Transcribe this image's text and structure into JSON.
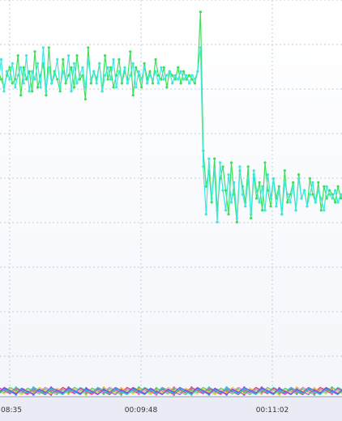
{
  "chart_data": {
    "type": "line",
    "grid": true,
    "legend": "none",
    "x_ticks": [
      "08:35",
      "00:09:48",
      "00:11:02"
    ],
    "ylim": [
      0,
      100
    ],
    "series": [
      {
        "color": "#3de058",
        "values": [
          82,
          80,
          78,
          81,
          83,
          79,
          80,
          86,
          76,
          83,
          80,
          82,
          77,
          87,
          78,
          81,
          84,
          76,
          88,
          79,
          82,
          80,
          77,
          85,
          79,
          81,
          83,
          78,
          86,
          80,
          81,
          75,
          88,
          79,
          82,
          80,
          84,
          77,
          86,
          80,
          83,
          78,
          81,
          85,
          79,
          82,
          80,
          87,
          76,
          83,
          81,
          78,
          84,
          80,
          82,
          79,
          85,
          81,
          80,
          83,
          78,
          82,
          81,
          80,
          83,
          79,
          82,
          80,
          81,
          80,
          79,
          82,
          97,
          62,
          53,
          57,
          49,
          60,
          47,
          55,
          58,
          52,
          46,
          59,
          51,
          44,
          57,
          53,
          49,
          58,
          45,
          56,
          50,
          54,
          47,
          59,
          52,
          48,
          55,
          50,
          53,
          46,
          57,
          49,
          51,
          54,
          47,
          56,
          50,
          52,
          48,
          55,
          51,
          49,
          54,
          47,
          53,
          50,
          52,
          51,
          49,
          53,
          50,
          52
        ]
      },
      {
        "color": "#3ee8e0",
        "values": [
          79,
          85,
          77,
          82,
          80,
          84,
          78,
          81,
          83,
          79,
          86,
          77,
          82,
          80,
          84,
          78,
          88,
          77,
          83,
          79,
          81,
          85,
          78,
          82,
          80,
          86,
          77,
          84,
          79,
          81,
          83,
          78,
          85,
          80,
          82,
          79,
          84,
          77,
          81,
          83,
          80,
          85,
          78,
          82,
          80,
          83,
          79,
          81,
          84,
          78,
          82,
          80,
          83,
          79,
          81,
          80,
          82,
          79,
          83,
          80,
          81,
          82,
          79,
          81,
          80,
          82,
          80,
          81,
          79,
          81,
          80,
          82,
          88,
          58,
          46,
          60,
          50,
          57,
          44,
          59,
          52,
          47,
          56,
          49,
          54,
          45,
          58,
          51,
          48,
          55,
          46,
          57,
          52,
          49,
          53,
          47,
          56,
          50,
          55,
          48,
          52,
          46,
          54,
          51,
          49,
          53,
          47,
          55,
          50,
          52,
          48,
          51,
          54,
          49,
          52,
          50,
          47,
          53,
          51,
          50,
          52,
          49,
          51,
          50
        ]
      }
    ],
    "bottom_series_colors": [
      "#e0304a",
      "#30a0e8",
      "#a040d8",
      "#e8c030",
      "#40c860",
      "#e860c0",
      "#30c8c8",
      "#7060e0"
    ]
  }
}
